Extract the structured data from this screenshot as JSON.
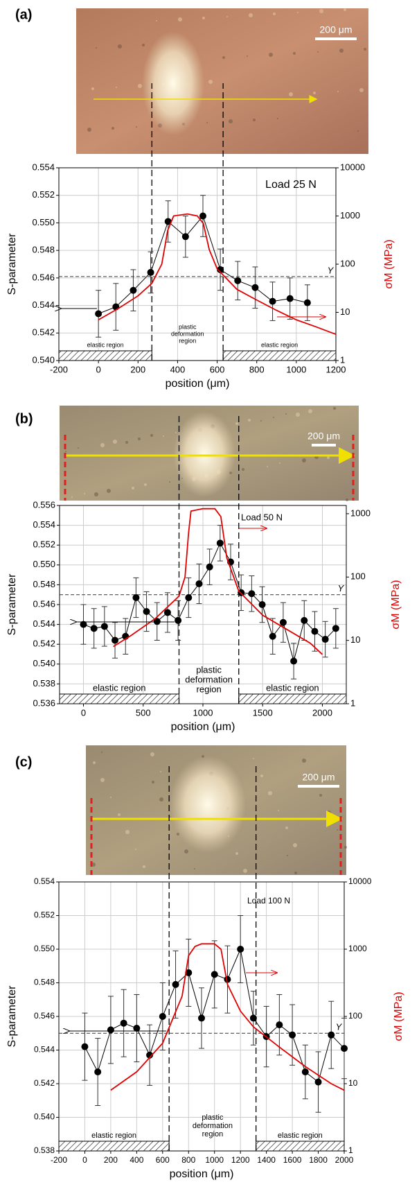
{
  "chart_data": [
    {
      "type": "line",
      "panel_label": "(a)",
      "image_scale_label": "200 μm",
      "annotation": "Load 25 N",
      "x_label": "position (μm)",
      "y_label": "S-parameter",
      "y2_label": "σM (MPa)",
      "threshold": 0.5461,
      "threshold_label": "Y",
      "boundaries": [
        270,
        630
      ],
      "region_labels": {
        "left": "elastic region",
        "middle": [
          "plastic",
          "deformation",
          "region"
        ],
        "right": "elastic region"
      },
      "xlim": [
        -200,
        1200
      ],
      "xticks": [
        -200,
        0,
        200,
        400,
        600,
        800,
        1000,
        1200
      ],
      "ylim": [
        0.54,
        0.554
      ],
      "yticks": [
        {
          "value": 0.54,
          "label": "0.540"
        },
        0.542,
        0.544,
        0.546,
        0.548,
        {
          "value": 0.55,
          "label": "0.550"
        },
        0.552,
        0.554
      ],
      "y2lim": [
        1,
        10000
      ],
      "y2ticks": [
        1,
        10,
        100,
        1000,
        10000
      ],
      "y2log": true,
      "series": [
        {
          "color": "#000000",
          "x": [
            0,
            88,
            176,
            264,
            352,
            440,
            528,
            616,
            704,
            792,
            880,
            968,
            1056
          ],
          "values": [
            0.5434,
            0.5439,
            0.5451,
            0.5464,
            0.5501,
            0.549,
            0.5505,
            0.5466,
            0.5458,
            0.5453,
            0.5443,
            0.5445,
            0.5442
          ],
          "errors": [
            0.0017,
            0.0017,
            0.0015,
            0.0015,
            0.0015,
            0.0015,
            0.0015,
            0.0015,
            0.0014,
            0.0015,
            0.0014,
            0.0015,
            0.0013
          ]
        },
        {
          "color": "#e00000",
          "axis": "y2",
          "x": [
            0,
            100,
            200,
            270,
            320,
            350,
            380,
            450,
            500,
            530,
            560,
            600,
            700,
            800,
            900,
            1000,
            1100,
            1200
          ],
          "values": [
            7,
            12,
            22,
            40,
            100,
            500,
            1000,
            1100,
            1000,
            700,
            200,
            80,
            30,
            18,
            11,
            7,
            5,
            3.5
          ]
        }
      ]
    },
    {
      "type": "line",
      "panel_label": "(b)",
      "image_scale_label": "200 μm",
      "annotation": "Load 50 N",
      "x_label": "position (μm)",
      "y_label": "S-parameter",
      "y2_label": "σM (MPa)",
      "threshold": 0.547,
      "threshold_label": "Y",
      "boundaries": [
        800,
        1300
      ],
      "region_labels": {
        "left": "elastic region",
        "middle": [
          "plastic",
          "deformation",
          "region"
        ],
        "right": "elastic region"
      },
      "xlim": [
        -200,
        2200
      ],
      "xticks": [
        0,
        500,
        1000,
        1500,
        2000
      ],
      "ylim": [
        0.536,
        0.556
      ],
      "yticks": [
        0.536,
        0.538,
        {
          "value": 0.54,
          "label": "0.540"
        },
        0.542,
        0.544,
        0.546,
        0.548,
        {
          "value": 0.55,
          "label": "0.550"
        },
        0.552,
        0.554,
        0.556
      ],
      "y2lim": [
        1,
        1350
      ],
      "y2ticks": [
        1,
        10,
        100,
        1000
      ],
      "y2log": true,
      "series": [
        {
          "color": "#000000",
          "x": [
            0,
            88,
            176,
            264,
            352,
            440,
            528,
            616,
            704,
            792,
            880,
            968,
            1056,
            1144,
            1232,
            1320,
            1408,
            1496,
            1584,
            1672,
            1760,
            1848,
            1936,
            2024,
            2112
          ],
          "values": [
            0.544,
            0.5436,
            0.5438,
            0.5424,
            0.5428,
            0.5467,
            0.5453,
            0.5443,
            0.5452,
            0.5444,
            0.5467,
            0.5481,
            0.5498,
            0.5522,
            0.5503,
            0.5472,
            0.5471,
            0.546,
            0.5428,
            0.5442,
            0.5403,
            0.5444,
            0.5433,
            0.5425,
            0.5436
          ],
          "errors": [
            0.002,
            0.002,
            0.002,
            0.0018,
            0.0018,
            0.002,
            0.002,
            0.0019,
            0.002,
            0.002,
            0.002,
            0.002,
            0.0018,
            0.0018,
            0.0018,
            0.0018,
            0.0018,
            0.0018,
            0.0018,
            0.002,
            0.0018,
            0.002,
            0.002,
            0.0018,
            0.002
          ]
        },
        {
          "color": "#e00000",
          "axis": "y2",
          "x": [
            250,
            400,
            600,
            800,
            850,
            880,
            900,
            1000,
            1100,
            1150,
            1200,
            1300,
            1500,
            1700,
            1900,
            2000
          ],
          "values": [
            8,
            12,
            22,
            50,
            100,
            500,
            1100,
            1200,
            1200,
            900,
            200,
            60,
            25,
            15,
            9,
            6
          ]
        }
      ]
    },
    {
      "type": "line",
      "panel_label": "(c)",
      "image_scale_label": "200 μm",
      "annotation": "Load 100 N",
      "x_label": "position (μm)",
      "y_label": "S-parameter",
      "y2_label": "σM (MPa)",
      "threshold": 0.545,
      "threshold_label": "Y",
      "boundaries": [
        650,
        1320
      ],
      "region_labels": {
        "left": "elastic region",
        "middle": [
          "plastic",
          "deformation",
          "region"
        ],
        "right": "elastic region"
      },
      "xlim": [
        -200,
        2000
      ],
      "xticks": [
        -200,
        0,
        200,
        400,
        600,
        800,
        1000,
        1200,
        1400,
        1600,
        1800,
        2000
      ],
      "ylim": [
        0.538,
        0.554
      ],
      "yticks": [
        0.538,
        {
          "value": 0.54,
          "label": "0.540"
        },
        0.542,
        0.544,
        0.546,
        0.548,
        {
          "value": 0.55,
          "label": "0.550"
        },
        0.552,
        0.554
      ],
      "y2lim": [
        1,
        10000
      ],
      "y2ticks": [
        1,
        10,
        100,
        1000,
        10000
      ],
      "y2log": true,
      "series": [
        {
          "color": "#000000",
          "x": [
            0,
            100,
            200,
            300,
            400,
            500,
            600,
            700,
            800,
            900,
            1000,
            1100,
            1200,
            1300,
            1400,
            1500,
            1600,
            1700,
            1800,
            1900,
            2000
          ],
          "values": [
            0.5442,
            0.5427,
            0.5452,
            0.5456,
            0.5453,
            0.5437,
            0.546,
            0.5479,
            0.5486,
            0.5459,
            0.5485,
            0.5482,
            0.55,
            0.5459,
            0.5448,
            0.5455,
            0.5449,
            0.5427,
            0.5421,
            0.5449,
            0.5441
          ],
          "errors": [
            0.002,
            0.002,
            0.002,
            0.002,
            0.002,
            0.0018,
            0.002,
            0.002,
            0.002,
            0.0018,
            0.002,
            0.002,
            0.002,
            0.0016,
            0.0018,
            0.0018,
            0.0018,
            0.0016,
            0.0018,
            0.002,
            0.0018
          ]
        },
        {
          "color": "#e00000",
          "axis": "y2",
          "x": [
            200,
            400,
            600,
            750,
            800,
            850,
            900,
            1000,
            1050,
            1100,
            1200,
            1300,
            1500,
            1700,
            1900,
            2000
          ],
          "values": [
            8,
            15,
            40,
            200,
            800,
            1100,
            1200,
            1200,
            1000,
            300,
            120,
            70,
            35,
            18,
            10,
            8
          ]
        }
      ]
    }
  ]
}
